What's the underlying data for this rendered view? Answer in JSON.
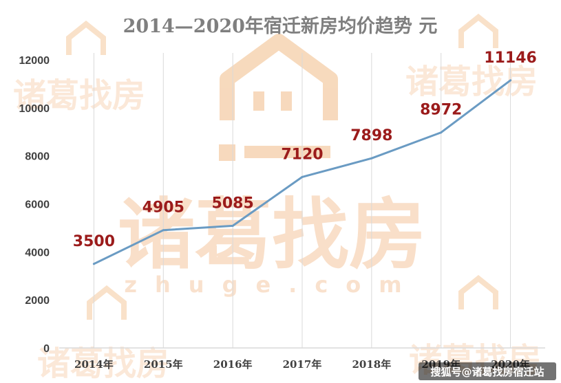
{
  "chart_data": {
    "type": "line",
    "title": "2014—2020年宿迁新房均价趋势 元",
    "categories": [
      "2014年",
      "2015年",
      "2016年",
      "2017年",
      "2018年",
      "2019年",
      "2020年"
    ],
    "series": [
      {
        "values": [
          3500,
          4905,
          5085,
          7120,
          7898,
          8972,
          11146
        ]
      }
    ],
    "data_labels": [
      "3500",
      "4905",
      "5085",
      "7120",
      "7898",
      "8972",
      "11146"
    ],
    "yticks": [
      "0",
      "2000",
      "4000",
      "6000",
      "8000",
      "10000",
      "12000"
    ],
    "ylim": [
      0,
      12000
    ],
    "grid": "vertical",
    "line_color": "#6a9bc3",
    "label_color": "#9b1b1b"
  },
  "watermark": {
    "brand": "诸葛找房",
    "domain": "zhuge.com",
    "color": "#f3c49c"
  },
  "credit": "搜狐号@诸葛找房宿迁站"
}
